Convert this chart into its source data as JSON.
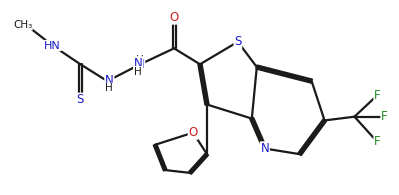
{
  "bg_color": "#ffffff",
  "line_color": "#1a1a1a",
  "S_color": "#1a1acc",
  "N_color": "#1a1acc",
  "O_color": "#cc2020",
  "F_color": "#228B22",
  "line_width": 1.6,
  "font_size": 8.5,
  "figsize": [
    3.99,
    1.95
  ],
  "dpi": 100,
  "xlim": [
    0.0,
    9.8
  ],
  "ylim": [
    0.5,
    5.0
  ]
}
